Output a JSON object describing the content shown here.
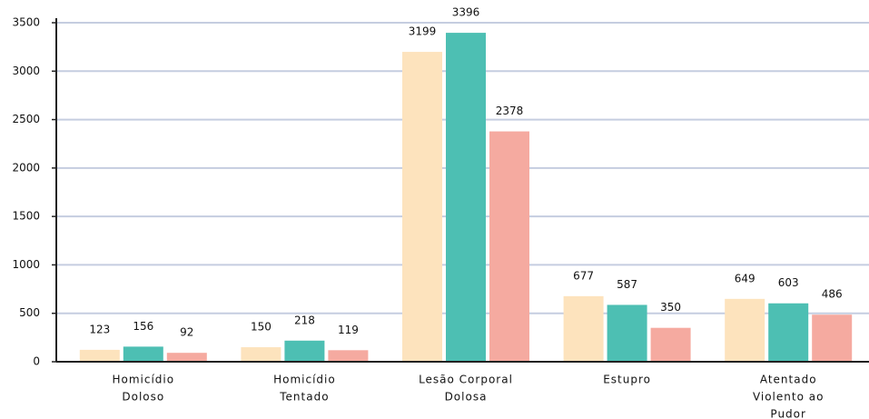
{
  "chart_data": {
    "type": "bar",
    "categories": [
      [
        "Homicídio",
        "Doloso"
      ],
      [
        "Homicídio",
        "Tentado"
      ],
      [
        "Lesão Corporal",
        "Dolosa"
      ],
      [
        "Estupro"
      ],
      [
        "Atentado",
        "Violento ao",
        "Pudor"
      ]
    ],
    "series": [
      {
        "color": "#fde3bd",
        "values": [
          123,
          150,
          3199,
          677,
          649
        ]
      },
      {
        "color": "#4dbfb3",
        "values": [
          156,
          218,
          3396,
          587,
          603
        ]
      },
      {
        "color": "#f5aaa0",
        "values": [
          92,
          119,
          2378,
          350,
          486
        ]
      }
    ],
    "ylim": [
      0,
      3500
    ],
    "yticks": [
      0,
      500,
      1000,
      1500,
      2000,
      2500,
      3000,
      3500
    ],
    "grid": true,
    "value_labels_shown": true
  }
}
